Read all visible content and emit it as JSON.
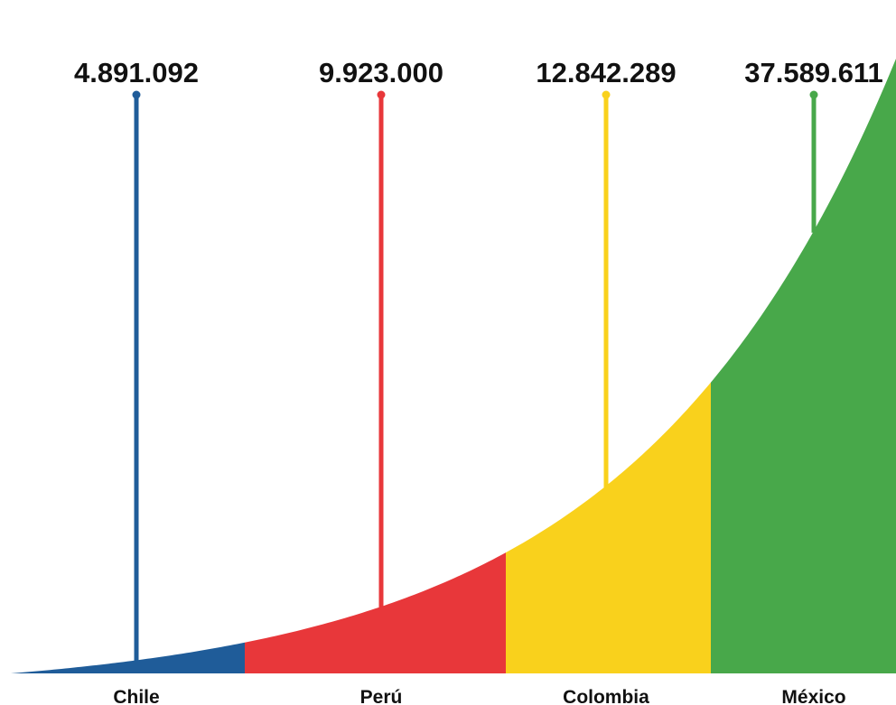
{
  "chart_data": {
    "type": "area",
    "categories": [
      "Chile",
      "Perú",
      "Colombia",
      "México"
    ],
    "values": [
      4891092,
      9923000,
      12842289,
      37589611
    ],
    "value_labels": [
      "4.891.092",
      "9.923.000",
      "12.842.289",
      "37.589.611"
    ],
    "colors": [
      "#1f5c99",
      "#e8373a",
      "#f9d11c",
      "#48a84a"
    ],
    "title": "",
    "xlabel": "",
    "ylabel": "",
    "grid": false,
    "legend": "none"
  }
}
